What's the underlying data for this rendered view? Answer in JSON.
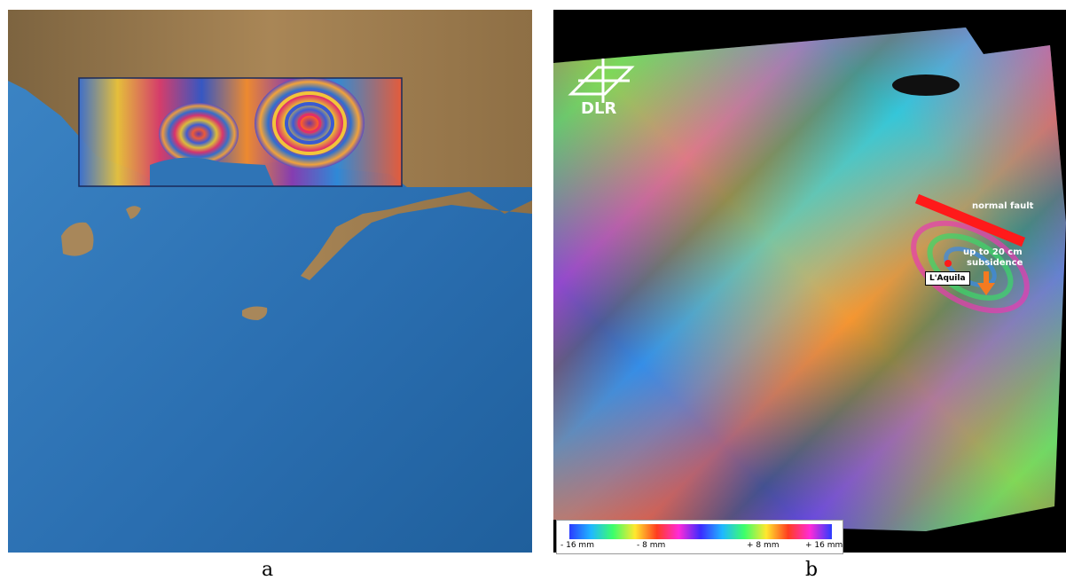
{
  "panels": {
    "a": {
      "caption": "a"
    },
    "b": {
      "caption": "b",
      "logo_text": "DLR",
      "annotations": {
        "fault": "normal fault",
        "subsidence_line1": "up to 20 cm",
        "subsidence_line2": "subsidence",
        "city": "L'Aquila"
      },
      "colorbar_ticks": [
        "- 16 mm",
        "- 8 mm",
        "+ 8 mm",
        "+ 16 mm"
      ]
    }
  },
  "colors": {
    "sea": "#2f74b6",
    "land": "#9a7a4a",
    "fault_line": "#ff1a1a",
    "arrow": "#f47a20",
    "background_b": "#000000"
  }
}
